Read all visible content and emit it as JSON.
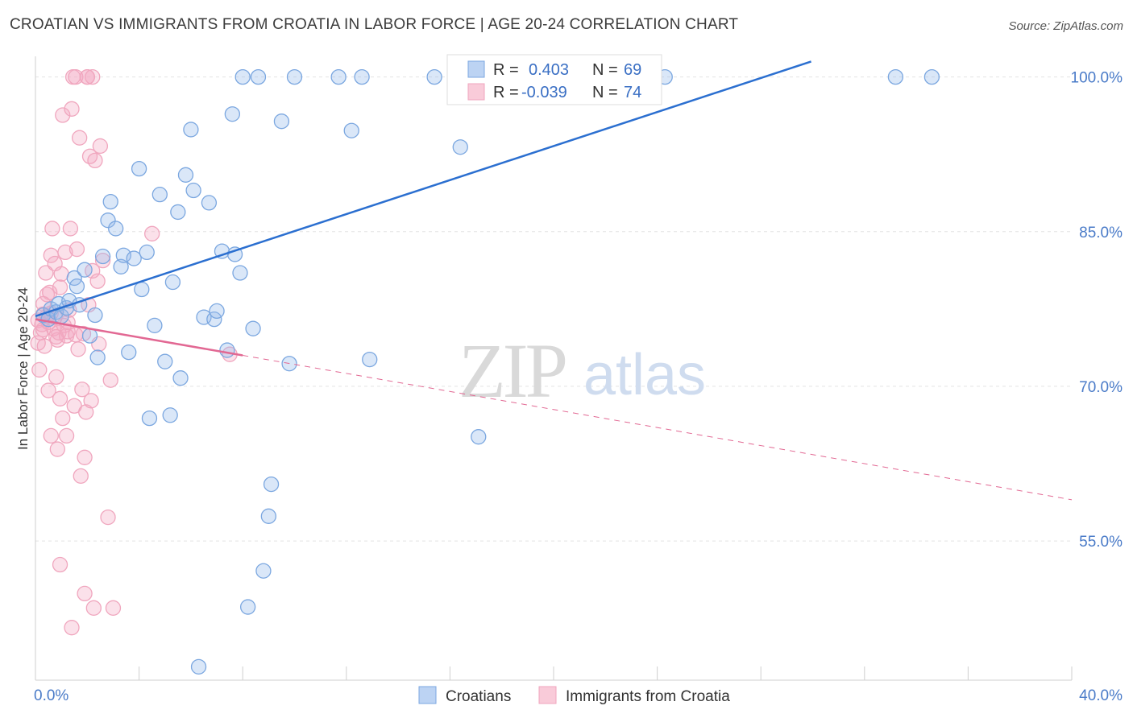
{
  "chart_data": {
    "type": "scatter",
    "title": "CROATIAN VS IMMIGRANTS FROM CROATIA IN LABOR FORCE | AGE 20-24 CORRELATION CHART",
    "source": "Source: ZipAtlas.com",
    "xlabel": "",
    "ylabel": "In Labor Force | Age 20-24",
    "xlim": [
      0,
      40
    ],
    "ylim": [
      41.5,
      102
    ],
    "x_tick_labels": [
      "0.0%",
      "40.0%"
    ],
    "y_ticks": [
      100,
      85,
      70,
      55
    ],
    "y_tick_labels": [
      "100.0%",
      "85.0%",
      "70.0%",
      "55.0%"
    ],
    "watermark": {
      "zip": "ZIP",
      "atlas": "atlas"
    },
    "legend": {
      "r_label": "R =",
      "n_label": "N =",
      "entries": [
        {
          "r": "0.403",
          "n": "69"
        },
        {
          "r": "-0.039",
          "n": "74"
        }
      ]
    },
    "series": [
      {
        "name": "Croatians",
        "color": "#7ba7e0",
        "line_color": "#2b6fd0",
        "trend": {
          "x0": 0,
          "y0": 76.8,
          "x1": 40,
          "y1": 109.8,
          "solid_to": 40
        },
        "points": [
          [
            0.3,
            76.9
          ],
          [
            0.5,
            76.5
          ],
          [
            0.6,
            77.5
          ],
          [
            0.8,
            77.2
          ],
          [
            0.9,
            78.0
          ],
          [
            1.0,
            76.8
          ],
          [
            1.2,
            77.6
          ],
          [
            1.3,
            78.3
          ],
          [
            1.5,
            80.5
          ],
          [
            1.6,
            79.7
          ],
          [
            1.7,
            77.9
          ],
          [
            1.9,
            81.3
          ],
          [
            2.1,
            74.9
          ],
          [
            2.3,
            76.9
          ],
          [
            2.4,
            72.8
          ],
          [
            2.6,
            82.6
          ],
          [
            2.8,
            86.1
          ],
          [
            2.9,
            87.9
          ],
          [
            3.1,
            85.3
          ],
          [
            3.3,
            81.6
          ],
          [
            3.4,
            82.7
          ],
          [
            3.6,
            73.3
          ],
          [
            3.8,
            82.4
          ],
          [
            4.0,
            91.1
          ],
          [
            4.1,
            79.4
          ],
          [
            4.3,
            83.0
          ],
          [
            4.4,
            66.9
          ],
          [
            4.6,
            75.9
          ],
          [
            4.8,
            88.6
          ],
          [
            5.0,
            72.4
          ],
          [
            5.2,
            67.2
          ],
          [
            5.3,
            80.1
          ],
          [
            5.5,
            86.9
          ],
          [
            5.6,
            70.8
          ],
          [
            5.8,
            90.5
          ],
          [
            6.0,
            94.9
          ],
          [
            6.1,
            89.0
          ],
          [
            6.3,
            42.8
          ],
          [
            6.5,
            76.7
          ],
          [
            6.7,
            87.8
          ],
          [
            6.9,
            76.5
          ],
          [
            7.0,
            77.3
          ],
          [
            7.2,
            83.1
          ],
          [
            7.4,
            73.5
          ],
          [
            7.6,
            96.4
          ],
          [
            7.7,
            82.8
          ],
          [
            7.9,
            81.0
          ],
          [
            8.0,
            100.0
          ],
          [
            8.2,
            48.6
          ],
          [
            8.4,
            75.6
          ],
          [
            8.6,
            100.0
          ],
          [
            8.8,
            52.1
          ],
          [
            9.0,
            57.4
          ],
          [
            9.1,
            60.5
          ],
          [
            9.5,
            95.7
          ],
          [
            9.8,
            72.2
          ],
          [
            10.0,
            100.0
          ],
          [
            11.7,
            100.0
          ],
          [
            12.2,
            94.8
          ],
          [
            12.6,
            100.0
          ],
          [
            12.9,
            72.6
          ],
          [
            15.4,
            100.0
          ],
          [
            16.4,
            93.2
          ],
          [
            17.1,
            65.1
          ],
          [
            19.6,
            100.0
          ],
          [
            22.1,
            100.0
          ],
          [
            24.3,
            100.0
          ],
          [
            33.2,
            100.0
          ],
          [
            34.6,
            100.0
          ]
        ]
      },
      {
        "name": "Immigrants from Croatia",
        "color": "#f0a6be",
        "line_color": "#e26893",
        "trend": {
          "x0": 0,
          "y0": 76.5,
          "x1": 40,
          "y1": 59.0,
          "solid_to": 8
        },
        "points": [
          [
            0.1,
            76.4
          ],
          [
            0.1,
            74.2
          ],
          [
            0.15,
            71.6
          ],
          [
            0.2,
            75.2
          ],
          [
            0.25,
            76.0
          ],
          [
            0.3,
            75.5
          ],
          [
            0.3,
            77.0
          ],
          [
            0.35,
            73.9
          ],
          [
            0.4,
            81.0
          ],
          [
            0.45,
            78.9
          ],
          [
            0.5,
            76.2
          ],
          [
            0.5,
            69.6
          ],
          [
            0.55,
            79.1
          ],
          [
            0.6,
            82.7
          ],
          [
            0.6,
            65.2
          ],
          [
            0.65,
            85.3
          ],
          [
            0.7,
            75.6
          ],
          [
            0.75,
            81.9
          ],
          [
            0.8,
            70.9
          ],
          [
            0.85,
            74.5
          ],
          [
            0.85,
            63.9
          ],
          [
            0.9,
            75.2
          ],
          [
            0.95,
            68.8
          ],
          [
            0.95,
            52.7
          ],
          [
            1.0,
            80.9
          ],
          [
            1.05,
            66.9
          ],
          [
            1.05,
            96.3
          ],
          [
            1.1,
            75.9
          ],
          [
            1.15,
            83.0
          ],
          [
            1.2,
            65.2
          ],
          [
            1.2,
            74.9
          ],
          [
            1.25,
            76.2
          ],
          [
            1.3,
            77.4
          ],
          [
            1.35,
            85.3
          ],
          [
            1.4,
            96.9
          ],
          [
            1.4,
            46.6
          ],
          [
            1.45,
            100.0
          ],
          [
            1.5,
            68.1
          ],
          [
            1.55,
            100.0
          ],
          [
            1.6,
            83.3
          ],
          [
            1.65,
            73.6
          ],
          [
            1.7,
            94.1
          ],
          [
            1.75,
            61.3
          ],
          [
            1.8,
            69.7
          ],
          [
            1.85,
            75.1
          ],
          [
            1.9,
            63.1
          ],
          [
            1.9,
            49.9
          ],
          [
            1.95,
            67.5
          ],
          [
            2.0,
            100.0
          ],
          [
            2.05,
            77.9
          ],
          [
            2.1,
            92.3
          ],
          [
            2.15,
            68.6
          ],
          [
            2.2,
            81.2
          ],
          [
            2.2,
            100.0
          ],
          [
            2.25,
            48.5
          ],
          [
            2.3,
            91.9
          ],
          [
            2.4,
            80.2
          ],
          [
            2.45,
            74.1
          ],
          [
            2.5,
            93.3
          ],
          [
            2.6,
            82.2
          ],
          [
            2.8,
            57.3
          ],
          [
            2.9,
            70.6
          ],
          [
            3.0,
            48.5
          ],
          [
            4.5,
            84.8
          ],
          [
            1.25,
            75.3
          ],
          [
            0.45,
            76.8
          ],
          [
            0.6,
            77.1
          ],
          [
            0.95,
            79.6
          ],
          [
            0.8,
            74.8
          ],
          [
            0.3,
            78.0
          ],
          [
            0.75,
            76.7
          ],
          [
            1.55,
            75.0
          ],
          [
            7.5,
            73.1
          ],
          [
            2.0,
            100.0
          ]
        ]
      }
    ]
  },
  "bottom_legend": {
    "croatians": "Croatians",
    "immigrants": "Immigrants from Croatia"
  }
}
